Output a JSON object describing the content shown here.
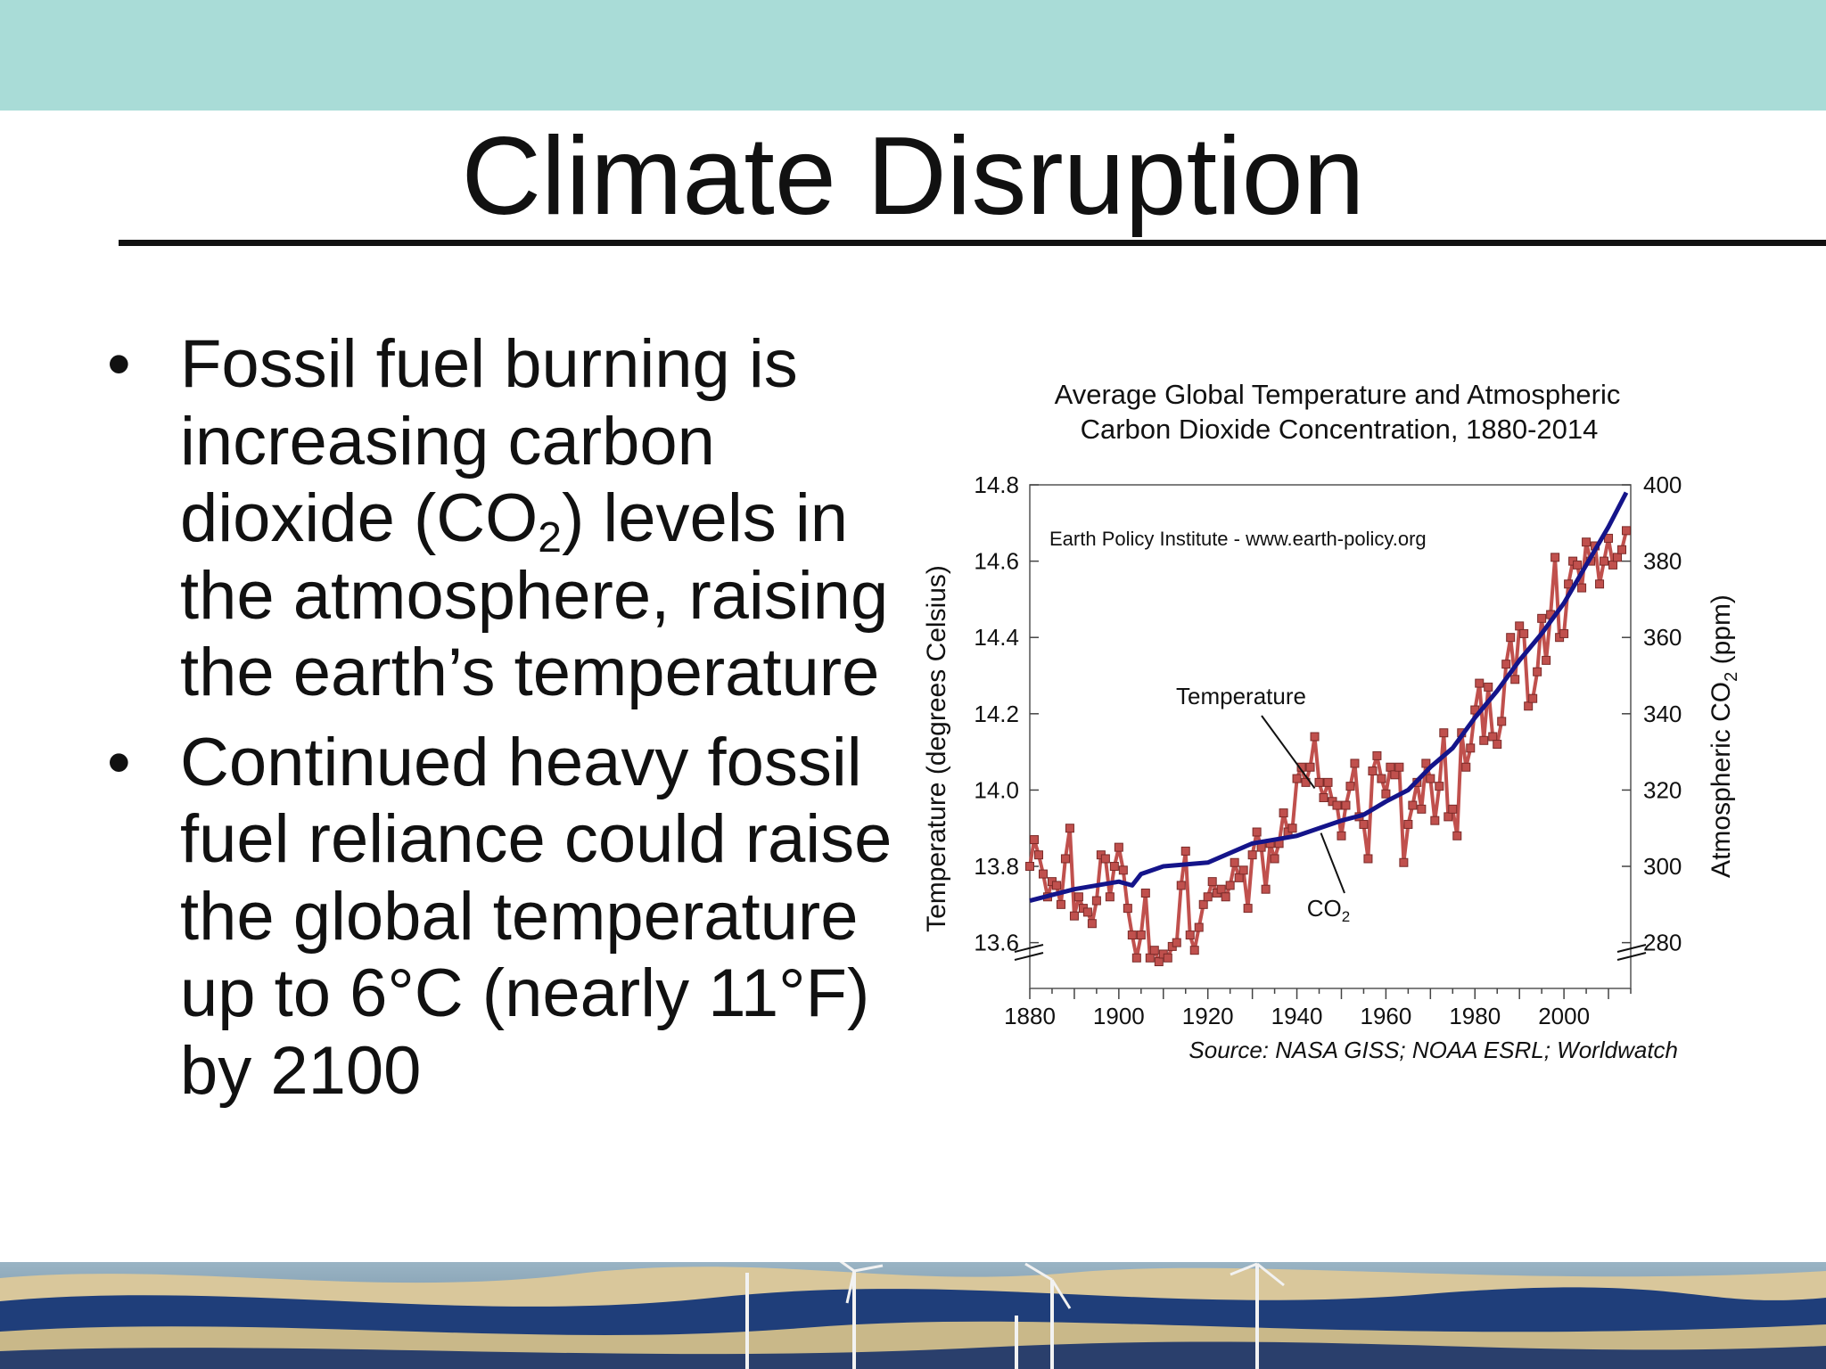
{
  "slide": {
    "title": "Climate Disruption",
    "bullets": [
      {
        "before": "Fossil fuel burning is increasing carbon dioxide (CO",
        "sub": "2",
        "after": ") levels in the atmosphere, raising the earth’s temperature"
      },
      {
        "before": "Continued heavy fossil fuel reliance could raise the global temperature up to 6°C (nearly 11°F) by 2100",
        "sub": "",
        "after": ""
      }
    ],
    "bullet_glyph": "•"
  },
  "colors": {
    "top_band": "#a9dcd7",
    "temperature": "#c0504d",
    "co2": "#14148a",
    "text": "#111111"
  },
  "chart_data": {
    "type": "line",
    "title_line1": "Average Global Temperature and Atmospheric",
    "title_line2": "Carbon Dioxide Concentration, 1880-2014",
    "watermark": "Earth Policy Institute - www.earth-policy.org",
    "source": "Source: NASA GISS; NOAA ESRL; Worldwatch",
    "ylabel_left": "Temperature (degrees Celsius)",
    "ylabel_right_prefix": "Atmospheric CO",
    "ylabel_right_sub": "2",
    "ylabel_right_suffix": " (ppm)",
    "xlim": [
      1880,
      2015
    ],
    "ylim_left": [
      13.48,
      14.8
    ],
    "ylim_right": [
      268,
      400
    ],
    "x_ticks": [
      1880,
      1900,
      1920,
      1940,
      1960,
      1980,
      2000
    ],
    "y_ticks_left": [
      13.6,
      13.8,
      14.0,
      14.2,
      14.4,
      14.6,
      14.8
    ],
    "y_ticks_right": [
      280,
      300,
      320,
      340,
      360,
      380,
      400
    ],
    "annotations": [
      {
        "text": "Temperature",
        "sub": "",
        "year": 1944,
        "value": 14.0,
        "axis": "left"
      },
      {
        "text": "CO",
        "sub": "2",
        "year": 1945,
        "value": 312,
        "axis": "right"
      }
    ],
    "series": [
      {
        "name": "Temperature",
        "marker": "square",
        "x": [
          1880,
          1881,
          1882,
          1883,
          1884,
          1885,
          1886,
          1887,
          1888,
          1889,
          1890,
          1891,
          1892,
          1893,
          1894,
          1895,
          1896,
          1897,
          1898,
          1899,
          1900,
          1901,
          1902,
          1903,
          1904,
          1905,
          1906,
          1907,
          1908,
          1909,
          1910,
          1911,
          1912,
          1913,
          1914,
          1915,
          1916,
          1917,
          1918,
          1919,
          1920,
          1921,
          1922,
          1923,
          1924,
          1925,
          1926,
          1927,
          1928,
          1929,
          1930,
          1931,
          1932,
          1933,
          1934,
          1935,
          1936,
          1937,
          1938,
          1939,
          1940,
          1941,
          1942,
          1943,
          1944,
          1945,
          1946,
          1947,
          1948,
          1949,
          1950,
          1951,
          1952,
          1953,
          1954,
          1955,
          1956,
          1957,
          1958,
          1959,
          1960,
          1961,
          1962,
          1963,
          1964,
          1965,
          1966,
          1967,
          1968,
          1969,
          1970,
          1971,
          1972,
          1973,
          1974,
          1975,
          1976,
          1977,
          1978,
          1979,
          1980,
          1981,
          1982,
          1983,
          1984,
          1985,
          1986,
          1987,
          1988,
          1989,
          1990,
          1991,
          1992,
          1993,
          1994,
          1995,
          1996,
          1997,
          1998,
          1999,
          2000,
          2001,
          2002,
          2003,
          2004,
          2005,
          2006,
          2007,
          2008,
          2009,
          2010,
          2011,
          2012,
          2013,
          2014
        ],
        "values": [
          13.8,
          13.87,
          13.83,
          13.78,
          13.72,
          13.76,
          13.75,
          13.7,
          13.82,
          13.9,
          13.67,
          13.72,
          13.69,
          13.68,
          13.65,
          13.71,
          13.83,
          13.82,
          13.72,
          13.8,
          13.85,
          13.79,
          13.69,
          13.62,
          13.56,
          13.62,
          13.73,
          13.56,
          13.58,
          13.55,
          13.57,
          13.56,
          13.59,
          13.6,
          13.75,
          13.84,
          13.62,
          13.58,
          13.64,
          13.7,
          13.72,
          13.76,
          13.73,
          13.74,
          13.72,
          13.75,
          13.81,
          13.77,
          13.79,
          13.69,
          13.83,
          13.89,
          13.85,
          13.74,
          13.86,
          13.82,
          13.86,
          13.94,
          13.89,
          13.9,
          14.03,
          14.06,
          14.02,
          14.06,
          14.14,
          14.02,
          13.98,
          14.02,
          13.97,
          13.96,
          13.88,
          13.96,
          14.01,
          14.07,
          13.93,
          13.91,
          13.82,
          14.05,
          14.09,
          14.03,
          13.99,
          14.06,
          14.04,
          14.06,
          13.81,
          13.91,
          13.96,
          14.02,
          13.95,
          14.07,
          14.03,
          13.92,
          14.01,
          14.15,
          13.93,
          13.95,
          13.88,
          14.15,
          14.06,
          14.11,
          14.21,
          14.28,
          14.13,
          14.27,
          14.14,
          14.12,
          14.18,
          14.33,
          14.4,
          14.29,
          14.43,
          14.41,
          14.22,
          14.24,
          14.31,
          14.45,
          14.34,
          14.46,
          14.61,
          14.4,
          14.41,
          14.54,
          14.6,
          14.59,
          14.53,
          14.65,
          14.6,
          14.64,
          14.54,
          14.6,
          14.66,
          14.59,
          14.61,
          14.63,
          14.68
        ]
      },
      {
        "name": "CO2",
        "x": [
          1880,
          1890,
          1900,
          1903,
          1905,
          1910,
          1920,
          1930,
          1940,
          1945,
          1950,
          1955,
          1960,
          1965,
          1970,
          1975,
          1980,
          1985,
          1990,
          1995,
          2000,
          2005,
          2010,
          2014
        ],
        "values": [
          291,
          294,
          296,
          295,
          298,
          300,
          301,
          306,
          308,
          310,
          312,
          313.5,
          317,
          320,
          326,
          331,
          339,
          346,
          354,
          361,
          369,
          379,
          389,
          398
        ]
      }
    ]
  }
}
